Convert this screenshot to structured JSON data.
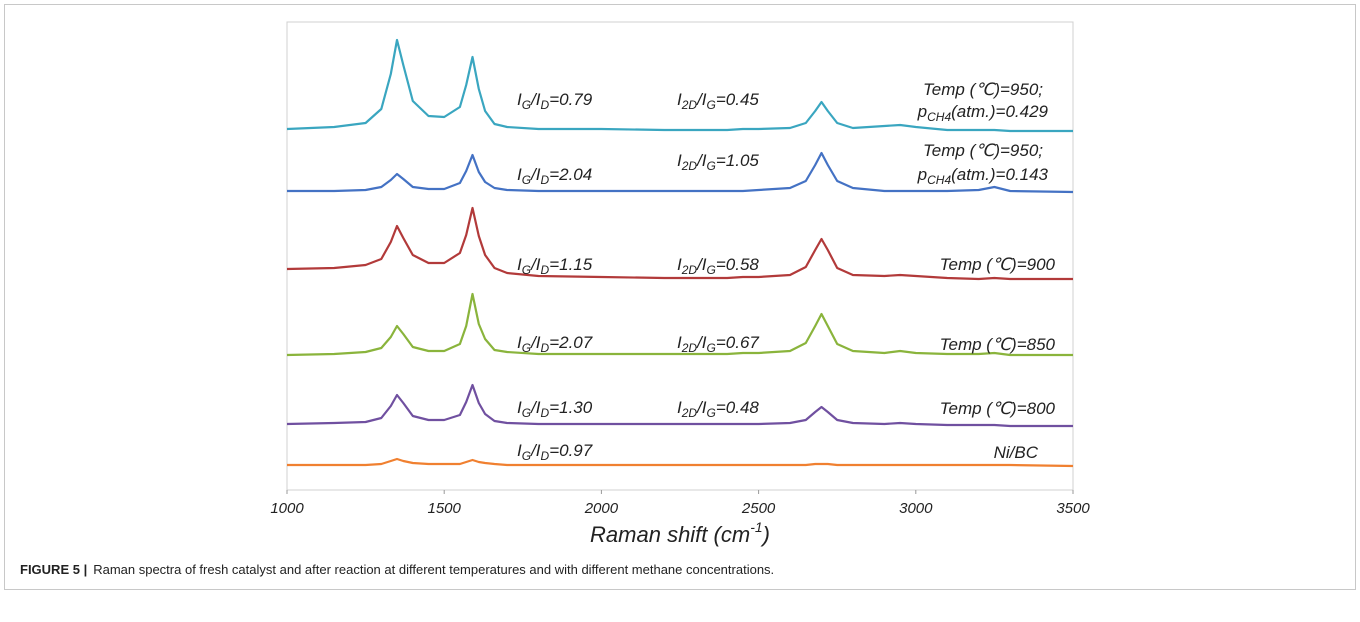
{
  "chart_data": {
    "type": "line",
    "xlabel": [
      "Raman shift (cm",
      "-1",
      ")"
    ],
    "x": [
      1000,
      1150,
      1250,
      1300,
      1330,
      1350,
      1370,
      1400,
      1450,
      1500,
      1550,
      1570,
      1590,
      1610,
      1630,
      1660,
      1700,
      1800,
      2000,
      2200,
      2400,
      2450,
      2500,
      2600,
      2650,
      2680,
      2700,
      2720,
      2750,
      2800,
      2900,
      2950,
      3000,
      3100,
      3200,
      3250,
      3300,
      3500
    ],
    "xlim": [
      1000,
      3500
    ],
    "xticks": [
      1000,
      1500,
      2000,
      2500,
      3000,
      3500
    ],
    "ylim": [
      0,
      468
    ],
    "series": [
      {
        "color": "#3aa6c0",
        "values": [
          361,
          363,
          367,
          381,
          416,
          450,
          425,
          389,
          374,
          373,
          383,
          405,
          433,
          401,
          379,
          366,
          363,
          361,
          361,
          360,
          360,
          361,
          361,
          362,
          367,
          379,
          388,
          379,
          367,
          362,
          364,
          365,
          363,
          360,
          360,
          360,
          359,
          359
        ]
      },
      {
        "color": "#4472c4",
        "values": [
          299,
          299,
          300,
          303,
          310,
          316,
          311,
          303,
          301,
          301,
          307,
          319,
          335,
          318,
          308,
          302,
          300,
          299,
          299,
          299,
          299,
          299,
          300,
          302,
          309,
          325,
          337,
          325,
          309,
          302,
          299,
          299,
          299,
          299,
          300,
          303,
          299,
          298
        ]
      },
      {
        "color": "#b23a3a",
        "values": [
          221,
          222,
          225,
          231,
          248,
          264,
          252,
          235,
          227,
          227,
          237,
          255,
          282,
          254,
          235,
          222,
          217,
          214,
          213,
          212,
          212,
          213,
          213,
          215,
          223,
          240,
          251,
          240,
          222,
          215,
          214,
          215,
          214,
          212,
          211,
          212,
          211,
          211
        ]
      },
      {
        "color": "#8ab43c",
        "values": [
          135,
          136,
          138,
          142,
          153,
          164,
          156,
          143,
          139,
          139,
          146,
          164,
          196,
          166,
          151,
          140,
          138,
          136,
          136,
          136,
          136,
          137,
          137,
          139,
          147,
          164,
          176,
          164,
          146,
          139,
          137,
          139,
          137,
          136,
          136,
          137,
          135,
          135
        ]
      },
      {
        "color": "#7050a0",
        "values": [
          66,
          67,
          68,
          72,
          84,
          95,
          87,
          74,
          70,
          70,
          75,
          88,
          105,
          87,
          76,
          69,
          67,
          66,
          66,
          66,
          66,
          66,
          66,
          67,
          70,
          78,
          83,
          78,
          70,
          67,
          66,
          67,
          66,
          65,
          65,
          65,
          64,
          64
        ]
      },
      {
        "color": "#f08030",
        "values": [
          25,
          25,
          25,
          26,
          29,
          31,
          29,
          27,
          26,
          26,
          26,
          28,
          30,
          28,
          27,
          26,
          25,
          25,
          25,
          25,
          25,
          25,
          25,
          25,
          25,
          26,
          26,
          26,
          25,
          25,
          25,
          25,
          25,
          25,
          25,
          25,
          25,
          24
        ]
      }
    ],
    "annotations": [
      [
        "I",
        "G",
        "/I",
        "D",
        "=0.79"
      ],
      [
        "I",
        "2D",
        "/I",
        "G",
        "=0.45"
      ],
      [
        "Temp (℃)=950;"
      ],
      [
        "p",
        "CH4",
        "(atm.)=0.429"
      ],
      [
        "I",
        "G",
        "/I",
        "D",
        "=2.04"
      ],
      [
        "I",
        "2D",
        "/I",
        "G",
        "=1.05"
      ],
      [
        "Temp (℃)=950;"
      ],
      [
        "p",
        "CH4",
        "(atm.)=0.143"
      ],
      [
        "I",
        "G",
        "/I",
        "D",
        "=1.15"
      ],
      [
        "I",
        "2D",
        "/I",
        "G",
        "=0.58"
      ],
      [
        "Temp (℃)=900"
      ],
      [
        "I",
        "G",
        "/I",
        "D",
        "=2.07"
      ],
      [
        "I",
        "2D",
        "/I",
        "G",
        "=0.67"
      ],
      [
        "Temp (℃)=850"
      ],
      [
        "I",
        "G",
        "/I",
        "D",
        "=1.30"
      ],
      [
        "I",
        "2D",
        "/I",
        "G",
        "=0.48"
      ],
      [
        "Temp (℃)=800"
      ],
      [
        "I",
        "G",
        "/I",
        "D",
        "=0.97"
      ],
      [
        "Ni/BC"
      ]
    ]
  },
  "caption": {
    "label": "FIGURE 5 |",
    "text": "Raman spectra of fresh catalyst and after reaction at different temperatures and with different methane concentrations."
  }
}
